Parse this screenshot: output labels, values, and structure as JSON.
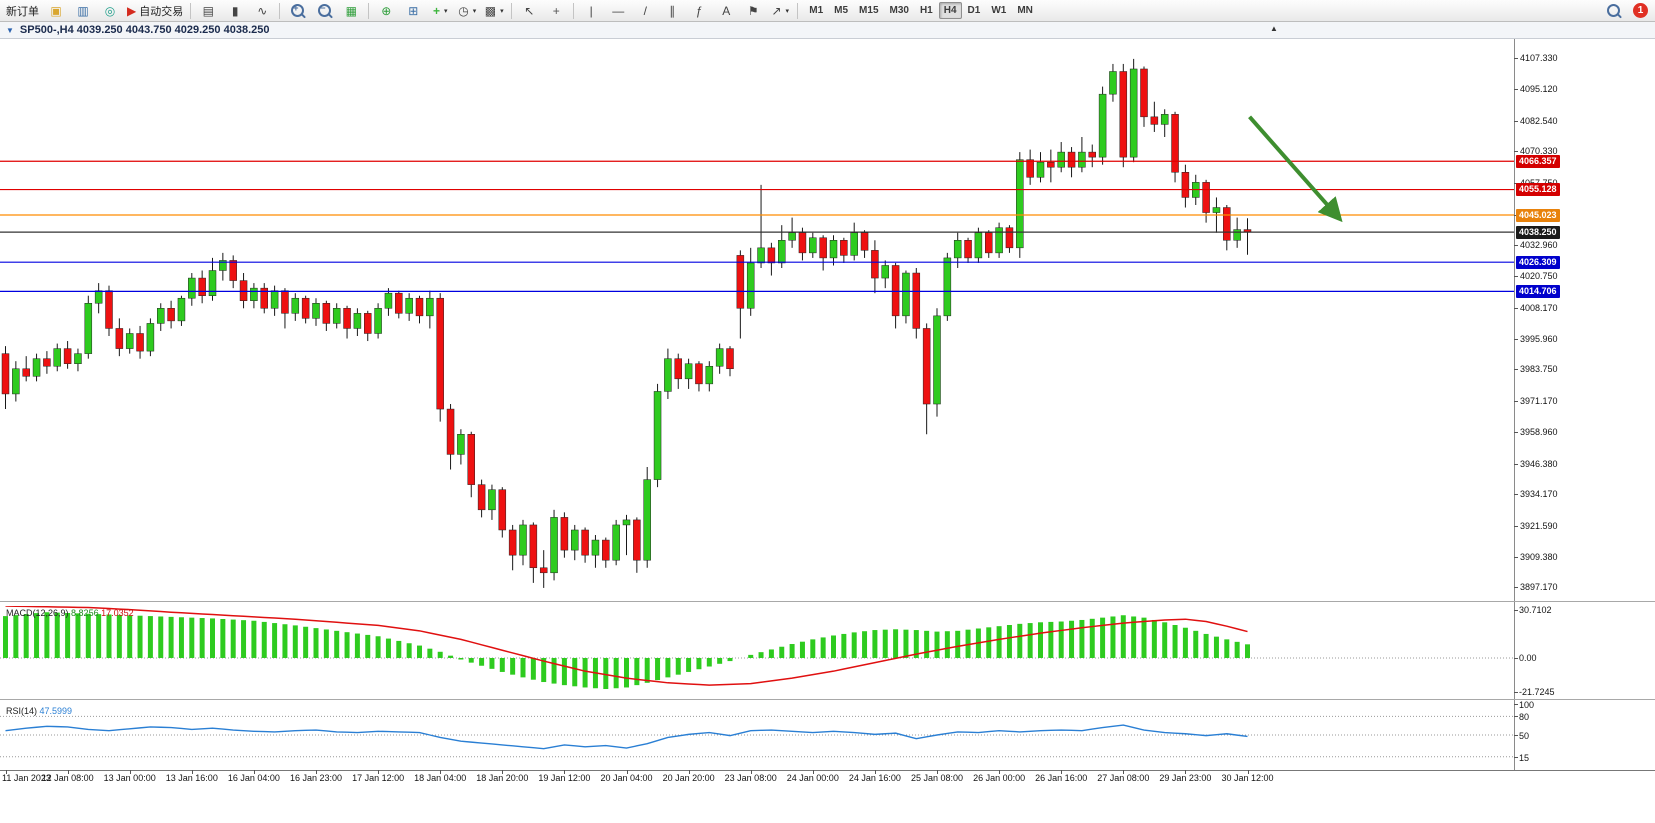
{
  "toolbar": {
    "new_order_label": "新订单",
    "auto_trading_label": "自动交易",
    "timeframes": [
      "M1",
      "M5",
      "M15",
      "M30",
      "H1",
      "H4",
      "D1",
      "W1",
      "MN"
    ],
    "active_timeframe": "H4",
    "notification_count": "1"
  },
  "icons": {
    "new_chart": "▣",
    "market_watch": "▥",
    "navigator": "◎",
    "auto_trading": "▶",
    "bar_chart": "▤",
    "candlestick": "▮",
    "line_chart": "∿",
    "tile_windows": "▦",
    "indicators": "⊕",
    "indicator_windows": "⊞",
    "add_indicator": "+",
    "periods": "◷",
    "templates": "▩",
    "cursor": "↖",
    "crosshair": "+",
    "vertical_line": "|",
    "horizontal_line": "—",
    "trendline": "/",
    "channel": "∥",
    "fibonacci": "ƒ",
    "text_tool": "A",
    "label_tool": "⚑",
    "arrows_tool": "↗",
    "dropdown": "▾",
    "collapse": "▼",
    "shift_marker": "▲",
    "zoom_in_sign": "+",
    "zoom_out_sign": "−"
  },
  "chart_header": {
    "symbol_ohlc": "SP500-,H4 4039.250 4043.750 4029.250 4038.250"
  },
  "price_axis_labels": [
    "4107.330",
    "4095.120",
    "4082.540",
    "4070.330",
    "4057.750",
    "4045.170",
    "4032.960",
    "4020.750",
    "4008.170",
    "3995.960",
    "3983.750",
    "3971.170",
    "3958.960",
    "3946.380",
    "3934.170",
    "3921.590",
    "3909.380",
    "3897.170"
  ],
  "levels": [
    {
      "value": 4066.357,
      "label": "4066.357",
      "color": "#e00000",
      "badge": "#d40000"
    },
    {
      "value": 4055.128,
      "label": "4055.128",
      "color": "#e00000",
      "badge": "#d40000"
    },
    {
      "value": 4045.023,
      "label": "4045.023",
      "color": "#ff8c00",
      "badge": "#e8820c"
    },
    {
      "value": 4038.25,
      "label": "4038.250",
      "color": "#333333",
      "badge": "#1a1a1a"
    },
    {
      "value": 4026.309,
      "label": "4026.309",
      "color": "#0000e0",
      "badge": "#0000cc"
    },
    {
      "value": 4014.706,
      "label": "4014.706",
      "color": "#0000e0",
      "badge": "#0000cc"
    }
  ],
  "time_axis_labels": [
    "11 Jan 2023",
    "12 Jan 08:00",
    "13 Jan 00:00",
    "13 Jan 16:00",
    "16 Jan 04:00",
    "16 Jan 23:00",
    "17 Jan 12:00",
    "18 Jan 04:00",
    "18 Jan 20:00",
    "19 Jan 12:00",
    "20 Jan 04:00",
    "20 Jan 20:00",
    "23 Jan 08:00",
    "24 Jan 00:00",
    "24 Jan 16:00",
    "25 Jan 08:00",
    "26 Jan 00:00",
    "26 Jan 16:00",
    "27 Jan 08:00",
    "29 Jan 23:00",
    "30 Jan 12:00"
  ],
  "macd_panel": {
    "name": "MACD(12,26,9)",
    "value_main": "8.8256",
    "value_signal": "17.0352",
    "scale_labels": [
      "30.7102",
      "0.00",
      "-21.7245"
    ]
  },
  "rsi_panel": {
    "name": "RSI(14)",
    "value": "47.5999",
    "scale_labels": [
      "100",
      "80",
      "50",
      "15"
    ]
  },
  "chart_data": {
    "type": "candlestick",
    "symbol": "SP500-",
    "timeframe": "H4",
    "ohlc_current": {
      "open": 4039.25,
      "high": 4043.75,
      "low": 4029.25,
      "close": 4038.25
    },
    "ylim": [
      3893,
      4114.5
    ],
    "label_step": 6,
    "up_color": "#2ecb1f",
    "down_color": "#ee1111",
    "wick_color": "#181818",
    "candles": [
      [
        3990,
        3993,
        3968,
        3974
      ],
      [
        3974,
        3987,
        3971,
        3984
      ],
      [
        3984,
        3989,
        3979,
        3981
      ],
      [
        3981,
        3990,
        3979,
        3988
      ],
      [
        3988,
        3991,
        3982,
        3985
      ],
      [
        3985,
        3994,
        3983,
        3992
      ],
      [
        3992,
        3995,
        3984,
        3986
      ],
      [
        3986,
        3992,
        3983,
        3990
      ],
      [
        3990,
        4013,
        3988,
        4010
      ],
      [
        4010,
        4018,
        4006,
        4015
      ],
      [
        4015,
        4017,
        3997,
        4000
      ],
      [
        4000,
        4004,
        3989,
        3992
      ],
      [
        3992,
        4000,
        3990,
        3998
      ],
      [
        3998,
        4001,
        3988,
        3991
      ],
      [
        3991,
        4004,
        3989,
        4002
      ],
      [
        4002,
        4010,
        3999,
        4008
      ],
      [
        4008,
        4011,
        4000,
        4003
      ],
      [
        4003,
        4013,
        4001,
        4012
      ],
      [
        4012,
        4022,
        4009,
        4020
      ],
      [
        4020,
        4023,
        4010,
        4013
      ],
      [
        4013,
        4028,
        4011,
        4023
      ],
      [
        4023,
        4030,
        4019,
        4027
      ],
      [
        4027,
        4029,
        4016,
        4019
      ],
      [
        4019,
        4022,
        4008,
        4011
      ],
      [
        4011,
        4018,
        4008,
        4016
      ],
      [
        4016,
        4018,
        4006,
        4008
      ],
      [
        4008,
        4017,
        4005,
        4015
      ],
      [
        4015,
        4016,
        4000,
        4006
      ],
      [
        4006,
        4014,
        4003,
        4012
      ],
      [
        4012,
        4013,
        4002,
        4004
      ],
      [
        4004,
        4012,
        4001,
        4010
      ],
      [
        4010,
        4011,
        3999,
        4002
      ],
      [
        4002,
        4010,
        4000,
        4008
      ],
      [
        4008,
        4009,
        3996,
        4000
      ],
      [
        4000,
        4008,
        3997,
        4006
      ],
      [
        4006,
        4007,
        3995,
        3998
      ],
      [
        3998,
        4010,
        3996,
        4008
      ],
      [
        4008,
        4016,
        4005,
        4014
      ],
      [
        4014,
        4015,
        4004,
        4006
      ],
      [
        4006,
        4014,
        4003,
        4012
      ],
      [
        4012,
        4013,
        4002,
        4005
      ],
      [
        4005,
        4015,
        4000,
        4012
      ],
      [
        4012,
        4014,
        3963,
        3968
      ],
      [
        3968,
        3970,
        3944,
        3950
      ],
      [
        3950,
        3960,
        3946,
        3958
      ],
      [
        3958,
        3959,
        3933,
        3938
      ],
      [
        3938,
        3940,
        3925,
        3928
      ],
      [
        3928,
        3938,
        3924,
        3936
      ],
      [
        3936,
        3937,
        3917,
        3920
      ],
      [
        3920,
        3922,
        3904,
        3910
      ],
      [
        3910,
        3924,
        3906,
        3922
      ],
      [
        3922,
        3923,
        3899,
        3905
      ],
      [
        3905,
        3912,
        3897,
        3903
      ],
      [
        3903,
        3928,
        3900,
        3925
      ],
      [
        3925,
        3927,
        3909,
        3912
      ],
      [
        3912,
        3922,
        3908,
        3920
      ],
      [
        3920,
        3921,
        3907,
        3910
      ],
      [
        3910,
        3918,
        3905,
        3916
      ],
      [
        3916,
        3917,
        3905,
        3908
      ],
      [
        3908,
        3924,
        3906,
        3922
      ],
      [
        3922,
        3926,
        3910,
        3924
      ],
      [
        3924,
        3925,
        3903,
        3908
      ],
      [
        3908,
        3945,
        3905,
        3940
      ],
      [
        3940,
        3978,
        3937,
        3975
      ],
      [
        3975,
        3992,
        3972,
        3988
      ],
      [
        3988,
        3990,
        3976,
        3980
      ],
      [
        3980,
        3988,
        3976,
        3986
      ],
      [
        3986,
        3987,
        3975,
        3978
      ],
      [
        3978,
        3987,
        3975,
        3985
      ],
      [
        3985,
        3994,
        3982,
        3992
      ],
      [
        3992,
        3993,
        3981,
        3984
      ],
      [
        4029,
        4031,
        3996,
        4008
      ],
      [
        4008,
        4032,
        4005,
        4026
      ],
      [
        4026,
        4057,
        4024,
        4032
      ],
      [
        4032,
        4034,
        4021,
        4026
      ],
      [
        4026,
        4041,
        4024,
        4035
      ],
      [
        4035,
        4044,
        4032,
        4038
      ],
      [
        4038,
        4040,
        4027,
        4030
      ],
      [
        4030,
        4038,
        4028,
        4036
      ],
      [
        4036,
        4037,
        4023,
        4028
      ],
      [
        4028,
        4037,
        4025,
        4035
      ],
      [
        4035,
        4036,
        4026,
        4029
      ],
      [
        4029,
        4042,
        4027,
        4038
      ],
      [
        4038,
        4039,
        4028,
        4031
      ],
      [
        4031,
        4035,
        4014,
        4020
      ],
      [
        4020,
        4027,
        4016,
        4025
      ],
      [
        4025,
        4026,
        4000,
        4005
      ],
      [
        4005,
        4023,
        4002,
        4022
      ],
      [
        4022,
        4024,
        3996,
        4000
      ],
      [
        4000,
        4002,
        3958,
        3970
      ],
      [
        3970,
        4008,
        3965,
        4005
      ],
      [
        4005,
        4030,
        4003,
        4028
      ],
      [
        4028,
        4038,
        4024,
        4035
      ],
      [
        4035,
        4036,
        4026,
        4028
      ],
      [
        4028,
        4040,
        4026,
        4038
      ],
      [
        4038,
        4039,
        4028,
        4030
      ],
      [
        4030,
        4042,
        4028,
        4040
      ],
      [
        4040,
        4041,
        4030,
        4032
      ],
      [
        4032,
        4070,
        4028,
        4067
      ],
      [
        4067,
        4071,
        4057,
        4060
      ],
      [
        4060,
        4070,
        4058,
        4066
      ],
      [
        4066,
        4071,
        4058,
        4064
      ],
      [
        4064,
        4074,
        4062,
        4070
      ],
      [
        4070,
        4072,
        4060,
        4064
      ],
      [
        4064,
        4076,
        4062,
        4070
      ],
      [
        4070,
        4073,
        4064,
        4068
      ],
      [
        4068,
        4096,
        4065,
        4093
      ],
      [
        4093,
        4105,
        4090,
        4102
      ],
      [
        4102,
        4105,
        4064,
        4068
      ],
      [
        4068,
        4107,
        4066,
        4103
      ],
      [
        4103,
        4104,
        4080,
        4084
      ],
      [
        4084,
        4090,
        4078,
        4081
      ],
      [
        4081,
        4087,
        4076,
        4085
      ],
      [
        4085,
        4086,
        4058,
        4062
      ],
      [
        4062,
        4065,
        4048,
        4052
      ],
      [
        4052,
        4061,
        4049,
        4058
      ],
      [
        4058,
        4059,
        4042,
        4046
      ],
      [
        4046,
        4052,
        4038,
        4048
      ],
      [
        4048,
        4049,
        4031,
        4035
      ],
      [
        4035,
        4044,
        4032,
        4039.25
      ],
      [
        4039.25,
        4043.75,
        4029.25,
        4038.25
      ]
    ],
    "macd": {
      "ylim": [
        -24.5,
        33.5
      ],
      "hist_color": "#2ecb1f",
      "signal_color": "#e01010",
      "hist_points": [
        [
          0,
          27
        ],
        [
          4,
          29.5
        ],
        [
          8,
          28.5
        ],
        [
          12,
          27.5
        ],
        [
          16,
          26.5
        ],
        [
          20,
          25.5
        ],
        [
          24,
          24
        ],
        [
          28,
          21
        ],
        [
          32,
          17.5
        ],
        [
          36,
          14
        ],
        [
          40,
          8
        ],
        [
          42,
          4
        ],
        [
          44,
          -1
        ],
        [
          46,
          -5
        ],
        [
          48,
          -9
        ],
        [
          50,
          -12.5
        ],
        [
          52,
          -15.5
        ],
        [
          54,
          -17.5
        ],
        [
          56,
          -19
        ],
        [
          58,
          -20
        ],
        [
          60,
          -19
        ],
        [
          62,
          -16
        ],
        [
          64,
          -12.5
        ],
        [
          66,
          -9
        ],
        [
          68,
          -5.5
        ],
        [
          70,
          -2
        ],
        [
          72,
          2
        ],
        [
          74,
          5.5
        ],
        [
          76,
          9
        ],
        [
          78,
          12
        ],
        [
          80,
          14.5
        ],
        [
          82,
          16.5
        ],
        [
          84,
          18
        ],
        [
          86,
          18.5
        ],
        [
          88,
          18
        ],
        [
          90,
          17
        ],
        [
          92,
          17.5
        ],
        [
          94,
          19
        ],
        [
          96,
          20.5
        ],
        [
          98,
          22
        ],
        [
          100,
          23
        ],
        [
          102,
          23.5
        ],
        [
          104,
          24.5
        ],
        [
          106,
          26
        ],
        [
          108,
          27.5
        ],
        [
          110,
          26
        ],
        [
          112,
          23
        ],
        [
          114,
          19.5
        ],
        [
          116,
          15.5
        ],
        [
          118,
          12
        ],
        [
          120,
          8.8
        ]
      ],
      "signal_points": [
        [
          0,
          33.5
        ],
        [
          8,
          32.5
        ],
        [
          12,
          31.2
        ],
        [
          16,
          29.5
        ],
        [
          20,
          28
        ],
        [
          24,
          26.5
        ],
        [
          28,
          25
        ],
        [
          32,
          23
        ],
        [
          36,
          21
        ],
        [
          40,
          17.5
        ],
        [
          44,
          12
        ],
        [
          48,
          5
        ],
        [
          52,
          -2
        ],
        [
          56,
          -8.5
        ],
        [
          60,
          -13
        ],
        [
          64,
          -16
        ],
        [
          68,
          -17.5
        ],
        [
          72,
          -16.5
        ],
        [
          76,
          -13
        ],
        [
          80,
          -8.5
        ],
        [
          84,
          -3
        ],
        [
          88,
          2.5
        ],
        [
          92,
          7.5
        ],
        [
          96,
          12
        ],
        [
          100,
          16
        ],
        [
          104,
          19.5
        ],
        [
          108,
          22.5
        ],
        [
          112,
          24.5
        ],
        [
          114,
          25
        ],
        [
          116,
          23.5
        ],
        [
          118,
          20.5
        ],
        [
          120,
          17.04
        ]
      ]
    },
    "rsi": {
      "ylim": [
        0,
        100
      ],
      "color": "#2a7fd4",
      "levels": [
        80,
        50,
        15
      ],
      "points": [
        [
          0,
          57
        ],
        [
          2,
          61
        ],
        [
          4,
          64
        ],
        [
          6,
          63
        ],
        [
          8,
          59
        ],
        [
          10,
          57
        ],
        [
          12,
          60
        ],
        [
          14,
          63
        ],
        [
          16,
          62
        ],
        [
          18,
          59
        ],
        [
          20,
          61
        ],
        [
          22,
          58
        ],
        [
          24,
          56
        ],
        [
          26,
          55
        ],
        [
          28,
          57
        ],
        [
          30,
          58
        ],
        [
          32,
          55
        ],
        [
          34,
          54
        ],
        [
          36,
          56
        ],
        [
          38,
          55
        ],
        [
          40,
          54
        ],
        [
          42,
          46
        ],
        [
          44,
          40
        ],
        [
          46,
          37
        ],
        [
          48,
          34
        ],
        [
          50,
          31
        ],
        [
          52,
          28
        ],
        [
          54,
          34
        ],
        [
          56,
          31
        ],
        [
          58,
          33
        ],
        [
          60,
          29
        ],
        [
          62,
          36
        ],
        [
          64,
          46
        ],
        [
          66,
          51
        ],
        [
          68,
          54
        ],
        [
          70,
          49
        ],
        [
          72,
          57
        ],
        [
          74,
          58
        ],
        [
          76,
          56
        ],
        [
          78,
          54
        ],
        [
          80,
          56
        ],
        [
          82,
          54
        ],
        [
          84,
          51
        ],
        [
          86,
          53
        ],
        [
          88,
          44
        ],
        [
          90,
          50
        ],
        [
          92,
          55
        ],
        [
          94,
          54
        ],
        [
          96,
          57
        ],
        [
          98,
          55
        ],
        [
          100,
          57
        ],
        [
          102,
          58
        ],
        [
          104,
          57
        ],
        [
          106,
          62
        ],
        [
          108,
          66
        ],
        [
          110,
          58
        ],
        [
          112,
          54
        ],
        [
          114,
          52
        ],
        [
          116,
          49
        ],
        [
          118,
          52
        ],
        [
          120,
          47.6
        ]
      ]
    },
    "annotation_arrow": {
      "color": "#3e8e2f",
      "from": {
        "index": 120.2,
        "price": 4084
      },
      "to": {
        "index": 128.8,
        "price": 4044
      }
    }
  }
}
